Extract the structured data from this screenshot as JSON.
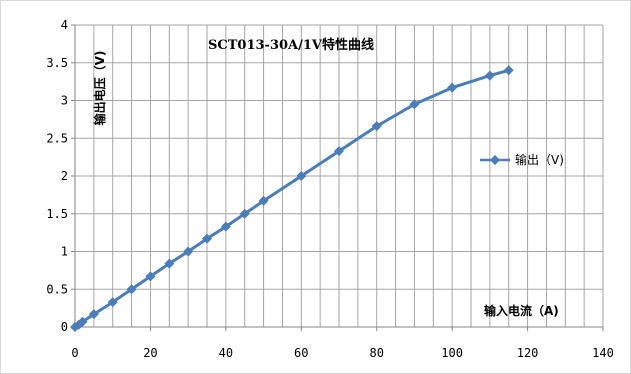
{
  "chart_data": {
    "type": "line",
    "title": "SCT013-30A/1V特性曲线",
    "xlabel": "输入电流（A)",
    "ylabel": "输出电压（V)",
    "xlim": [
      0,
      140
    ],
    "ylim": [
      0,
      4
    ],
    "x_ticks": [
      "0",
      "20",
      "40",
      "60",
      "80",
      "100",
      "120",
      "140"
    ],
    "y_ticks": [
      "0",
      "0.5",
      "1",
      "1.5",
      "2",
      "2.5",
      "3",
      "3.5",
      "4"
    ],
    "grid": true,
    "legend_position": "right",
    "series": [
      {
        "name": "输出（V)",
        "color": "#4a7ebb",
        "marker": "diamond",
        "x": [
          0,
          1,
          2,
          5,
          10,
          15,
          20,
          25,
          30,
          35,
          40,
          45,
          50,
          60,
          70,
          80,
          90,
          100,
          110,
          115
        ],
        "y": [
          0,
          0.03,
          0.07,
          0.17,
          0.33,
          0.5,
          0.67,
          0.84,
          1.0,
          1.17,
          1.33,
          1.5,
          1.67,
          2.0,
          2.33,
          2.66,
          2.95,
          3.17,
          3.33,
          3.4
        ]
      }
    ]
  }
}
